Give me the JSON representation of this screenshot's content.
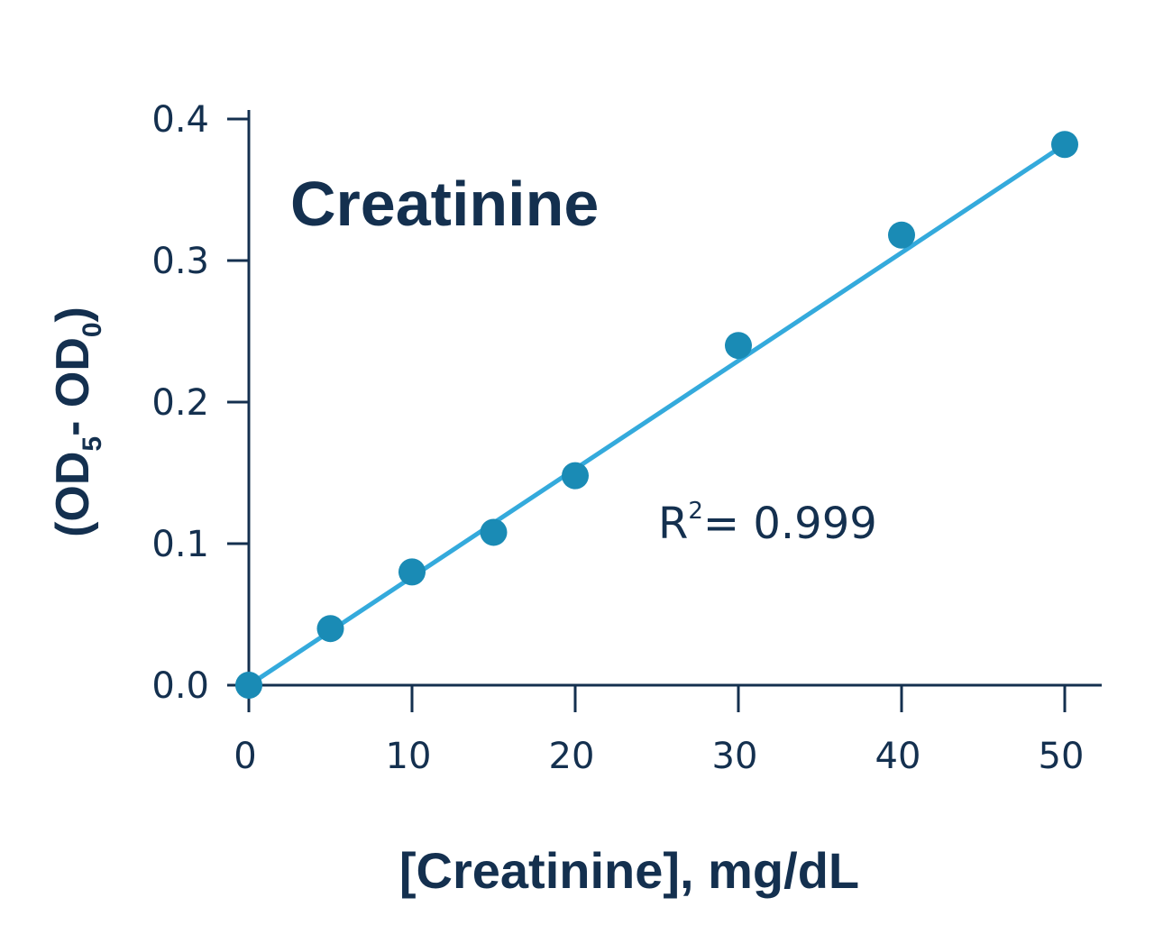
{
  "chart_data": {
    "type": "scatter",
    "title": "Creatinine",
    "xlabel": "[Creatinine], mg/dL",
    "ylabel": {
      "prefix": "(OD",
      "sub1": "5",
      "middle": "- OD",
      "sub2": "0",
      "suffix": ")"
    },
    "xlim": [
      0,
      51
    ],
    "ylim": [
      0,
      0.4
    ],
    "x_ticks": [
      0,
      10,
      20,
      30,
      40,
      50
    ],
    "x_tick_labels": [
      "0",
      "10",
      "20",
      "30",
      "40",
      "50"
    ],
    "y_ticks": [
      0,
      0.1,
      0.2,
      0.3,
      0.4
    ],
    "y_tick_labels": [
      "0.0",
      "0.1",
      "0.2",
      "0.3",
      "0.4"
    ],
    "grid": false,
    "series": [
      {
        "x": [
          0,
          5,
          10,
          15,
          20,
          30,
          40,
          50
        ],
        "y": [
          0.0,
          0.04,
          0.08,
          0.108,
          0.148,
          0.24,
          0.318,
          0.382
        ],
        "color": "#1a8bb5"
      }
    ],
    "fit_line": {
      "x": [
        0,
        50
      ],
      "y": [
        0.0,
        0.382
      ],
      "color": "#34aadc"
    },
    "annotation": {
      "base": "R",
      "sup": "2",
      "rest": "= 0.999"
    },
    "axis_color": "#14304f",
    "text_color": "#14304f"
  }
}
